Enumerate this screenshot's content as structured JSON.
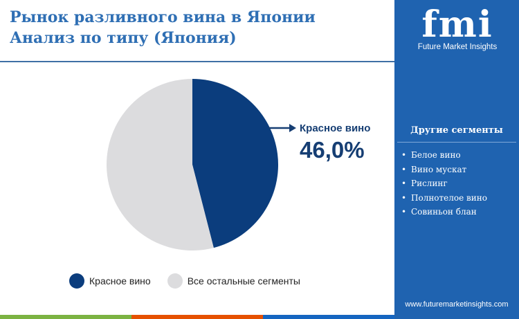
{
  "header": {
    "title_line1": "Рынок разливного вина в Японии",
    "title_line2": "Анализ по типу (Япония)"
  },
  "chart_data": {
    "type": "pie",
    "slices": [
      {
        "label": "Красное вино",
        "value": 46.0,
        "color": "#0b3d7d"
      },
      {
        "label": "Все остальные сегменты",
        "value": 54.0,
        "color": "#dcdcde"
      }
    ],
    "start_angle_deg": 0,
    "callout": {
      "label": "Красное вино",
      "value": "46,0%"
    },
    "legend_position": "bottom"
  },
  "legend": {
    "items": [
      {
        "label": "Красное вино",
        "color": "#0b3d7d"
      },
      {
        "label": "Все остальные сегменты",
        "color": "#dcdcde"
      }
    ]
  },
  "sidebar": {
    "logo_text": "fmi",
    "logo_tagline": "Future Market Insights",
    "segments_title": "Другие сегменты",
    "segments": [
      "Белое вино",
      "Вино мускат",
      "Рислинг",
      "Полнотелое вино",
      "Совиньон блан"
    ],
    "website": "www.futuremarketinsights.com"
  },
  "bottom_bar_colors": [
    "#7cb342",
    "#e65100",
    "#1565c0"
  ]
}
